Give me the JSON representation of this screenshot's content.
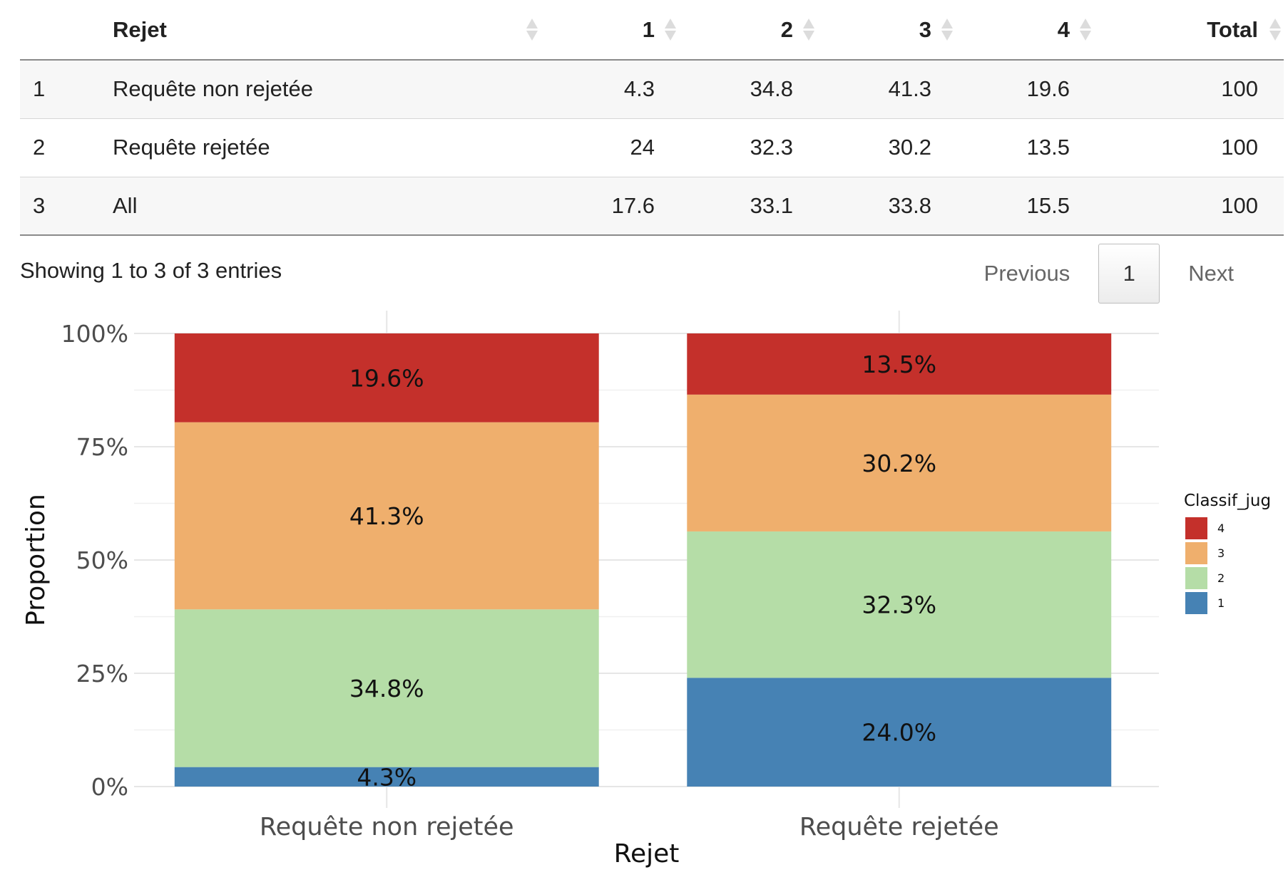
{
  "table": {
    "columns": [
      "",
      "Rejet",
      "1",
      "2",
      "3",
      "4",
      "Total"
    ],
    "rows": [
      {
        "idx": "1",
        "rejet": "Requête non rejetée",
        "c1": "4.3",
        "c2": "34.8",
        "c3": "41.3",
        "c4": "19.6",
        "total": "100"
      },
      {
        "idx": "2",
        "rejet": "Requête rejetée",
        "c1": "24",
        "c2": "32.3",
        "c3": "30.2",
        "c4": "13.5",
        "total": "100"
      },
      {
        "idx": "3",
        "rejet": "All",
        "c1": "17.6",
        "c2": "33.1",
        "c3": "33.8",
        "c4": "15.5",
        "total": "100"
      }
    ]
  },
  "info": {
    "text": "Showing 1 to 3 of 3 entries"
  },
  "pagination": {
    "previous": "Previous",
    "current": "1",
    "next": "Next"
  },
  "chart_data": {
    "type": "bar",
    "stacked": true,
    "categories": [
      "Requête non rejetée",
      "Requête rejetée"
    ],
    "series": [
      {
        "name": "1",
        "values": [
          4.3,
          24.0
        ],
        "color": "#4682b4"
      },
      {
        "name": "2",
        "values": [
          34.8,
          32.3
        ],
        "color": "#b5dda7"
      },
      {
        "name": "3",
        "values": [
          41.3,
          30.2
        ],
        "color": "#efaf6d"
      },
      {
        "name": "4",
        "values": [
          19.6,
          13.5
        ],
        "color": "#c4302b"
      }
    ],
    "data_labels": [
      [
        "4.3%",
        "34.8%",
        "41.3%",
        "19.6%"
      ],
      [
        "24.0%",
        "32.3%",
        "30.2%",
        "13.5%"
      ]
    ],
    "yticks": [
      "0%",
      "25%",
      "50%",
      "75%",
      "100%"
    ],
    "ylim": [
      0,
      100
    ],
    "xlabel": "Rejet",
    "ylabel": "Proportion",
    "legend_title": "Classif_jug",
    "legend_position": "right",
    "grid": true
  }
}
